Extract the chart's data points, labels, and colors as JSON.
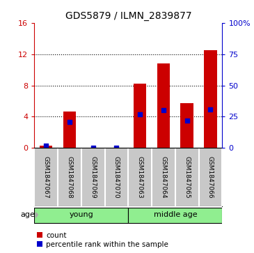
{
  "title": "GDS5879 / ILMN_2839877",
  "samples": [
    "GSM1847067",
    "GSM1847068",
    "GSM1847069",
    "GSM1847070",
    "GSM1847063",
    "GSM1847064",
    "GSM1847065",
    "GSM1847066"
  ],
  "count_values": [
    0.3,
    4.7,
    0.0,
    0.0,
    8.2,
    10.8,
    5.7,
    12.5
  ],
  "percentile_values": [
    2.0,
    21.0,
    0.0,
    0.0,
    27.0,
    30.0,
    22.0,
    31.0
  ],
  "groups": [
    {
      "label": "young",
      "start": 0,
      "end": 3,
      "color": "#90EE90"
    },
    {
      "label": "middle age",
      "start": 4,
      "end": 7,
      "color": "#90EE90"
    }
  ],
  "ylim_left": [
    0,
    16
  ],
  "ylim_right": [
    0,
    100
  ],
  "yticks_left": [
    0,
    4,
    8,
    12,
    16
  ],
  "yticks_right": [
    0,
    25,
    50,
    75,
    100
  ],
  "yticklabels_right": [
    "0",
    "25",
    "50",
    "75",
    "100%"
  ],
  "left_axis_color": "#cc0000",
  "right_axis_color": "#0000cc",
  "bar_color": "#cc0000",
  "dot_color": "#0000cc",
  "sample_box_color": "#c8c8c8",
  "bar_width": 0.55,
  "dot_size": 22,
  "legend_count_label": "count",
  "legend_pct_label": "percentile rank within the sample",
  "age_label": "age",
  "background_color": "#ffffff",
  "grid_dotted_ticks": [
    4,
    8,
    12
  ]
}
